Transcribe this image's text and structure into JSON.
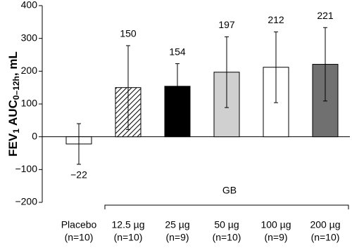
{
  "chart_data": {
    "type": "bar",
    "y_label": [
      "FEV",
      "1",
      " AUC",
      "0–12h",
      ", mL"
    ],
    "categories": [
      [
        "Placebo",
        "(n=10)"
      ],
      [
        "12.5 µg",
        "(n=10)"
      ],
      [
        "25 µg",
        "(n=9)"
      ],
      [
        "50 µg",
        "(n=10)"
      ],
      [
        "100 µg",
        "(n=9)"
      ],
      [
        "200 µg",
        "(n=10)"
      ]
    ],
    "group_label": "GB",
    "values": [
      -22,
      150,
      154,
      197,
      212,
      221
    ],
    "value_labels": [
      "−22",
      "150",
      "154",
      "197",
      "212",
      "221"
    ],
    "errors": [
      62,
      128,
      69,
      108,
      108,
      112
    ],
    "fills": [
      "#ffffff",
      "hatched",
      "#000000",
      "#d0d0d0",
      "#ffffff",
      "#707070"
    ],
    "ylim": [
      -200,
      400
    ],
    "yticks": [
      {
        "value": -200,
        "label": "−200"
      },
      {
        "value": -100,
        "label": "−100"
      },
      0,
      100,
      200,
      300,
      400
    ]
  }
}
